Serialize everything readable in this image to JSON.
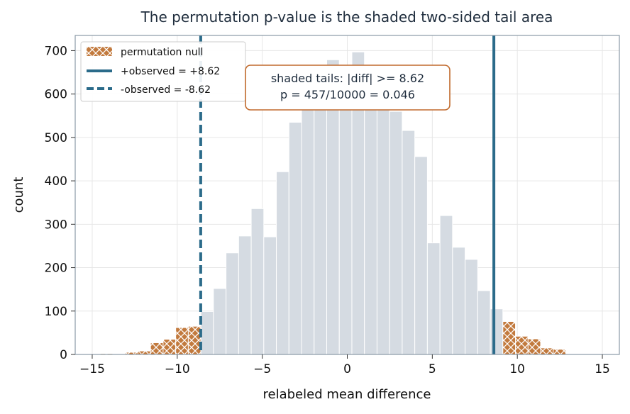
{
  "chart_data": {
    "type": "bar",
    "title": "The permutation p-value is the shaded two-sided tail area",
    "xlabel": "relabeled mean difference",
    "ylabel": "count",
    "xlim": [
      -16,
      16
    ],
    "ylim": [
      0,
      735
    ],
    "xticks": [
      -15,
      -10,
      -5,
      0,
      5,
      10,
      15
    ],
    "xtick_labels": [
      "−15",
      "−10",
      "−5",
      "0",
      "5",
      "10",
      "15"
    ],
    "yticks": [
      0,
      100,
      200,
      300,
      400,
      500,
      600,
      700
    ],
    "ytick_labels": [
      "0",
      "100",
      "200",
      "300",
      "400",
      "500",
      "600",
      "700"
    ],
    "grid": true,
    "bin_width": 0.74,
    "bins": [
      {
        "x": -14.9,
        "count": 1,
        "tail": true
      },
      {
        "x": -14.16,
        "count": 2,
        "tail": true
      },
      {
        "x": -13.42,
        "count": 0,
        "tail": true
      },
      {
        "x": -12.68,
        "count": 5,
        "tail": true
      },
      {
        "x": -11.94,
        "count": 8,
        "tail": true
      },
      {
        "x": -11.2,
        "count": 27,
        "tail": true
      },
      {
        "x": -10.46,
        "count": 35,
        "tail": true
      },
      {
        "x": -9.72,
        "count": 62,
        "tail": true
      },
      {
        "x": -8.98,
        "count": 65,
        "tail": true
      },
      {
        "x": -8.24,
        "count": 99,
        "tail": false
      },
      {
        "x": -7.5,
        "count": 152,
        "tail": false
      },
      {
        "x": -6.76,
        "count": 234,
        "tail": false
      },
      {
        "x": -6.02,
        "count": 273,
        "tail": false
      },
      {
        "x": -5.28,
        "count": 336,
        "tail": false
      },
      {
        "x": -4.54,
        "count": 271,
        "tail": false
      },
      {
        "x": -3.8,
        "count": 421,
        "tail": false
      },
      {
        "x": -3.06,
        "count": 535,
        "tail": false
      },
      {
        "x": -2.32,
        "count": 580,
        "tail": false
      },
      {
        "x": -1.58,
        "count": 620,
        "tail": false
      },
      {
        "x": -0.84,
        "count": 679,
        "tail": false
      },
      {
        "x": -0.1,
        "count": 650,
        "tail": false
      },
      {
        "x": 0.64,
        "count": 697,
        "tail": false
      },
      {
        "x": 1.38,
        "count": 640,
        "tail": false
      },
      {
        "x": 2.12,
        "count": 600,
        "tail": false
      },
      {
        "x": 2.86,
        "count": 560,
        "tail": false
      },
      {
        "x": 3.6,
        "count": 516,
        "tail": false
      },
      {
        "x": 4.34,
        "count": 456,
        "tail": false
      },
      {
        "x": 5.08,
        "count": 257,
        "tail": false
      },
      {
        "x": 5.82,
        "count": 320,
        "tail": false
      },
      {
        "x": 6.56,
        "count": 247,
        "tail": false
      },
      {
        "x": 7.3,
        "count": 219,
        "tail": false
      },
      {
        "x": 8.04,
        "count": 147,
        "tail": false
      },
      {
        "x": 8.78,
        "count": 105,
        "tail": false
      },
      {
        "x": 9.52,
        "count": 76,
        "tail": true
      },
      {
        "x": 10.26,
        "count": 42,
        "tail": true
      },
      {
        "x": 11.0,
        "count": 36,
        "tail": true
      },
      {
        "x": 11.74,
        "count": 15,
        "tail": true
      },
      {
        "x": 12.48,
        "count": 12,
        "tail": true
      },
      {
        "x": 13.22,
        "count": 1,
        "tail": true
      },
      {
        "x": 13.96,
        "count": 0,
        "tail": true
      },
      {
        "x": 14.7,
        "count": 1,
        "tail": true
      }
    ],
    "observed_lines": [
      {
        "name": "+observed = +8.62",
        "x": 8.62,
        "style": "solid"
      },
      {
        "name": "-observed = -8.62",
        "x": -8.62,
        "style": "dashed"
      }
    ],
    "legend": {
      "placement": "top-left",
      "entries": [
        "permutation null",
        "+observed = +8.62",
        "-observed = -8.62"
      ]
    },
    "annotation": {
      "lines": [
        "shaded tails: |diff| >= 8.62",
        "p = 457/10000 = 0.046"
      ]
    },
    "colors": {
      "null_bars": "#d5dbe2",
      "tail_bars": "#c27a3e",
      "observed": "#2b6b8a",
      "annotation_border": "#c0692b",
      "grid": "#e6e6e6",
      "spine": "#8a99a6"
    }
  }
}
